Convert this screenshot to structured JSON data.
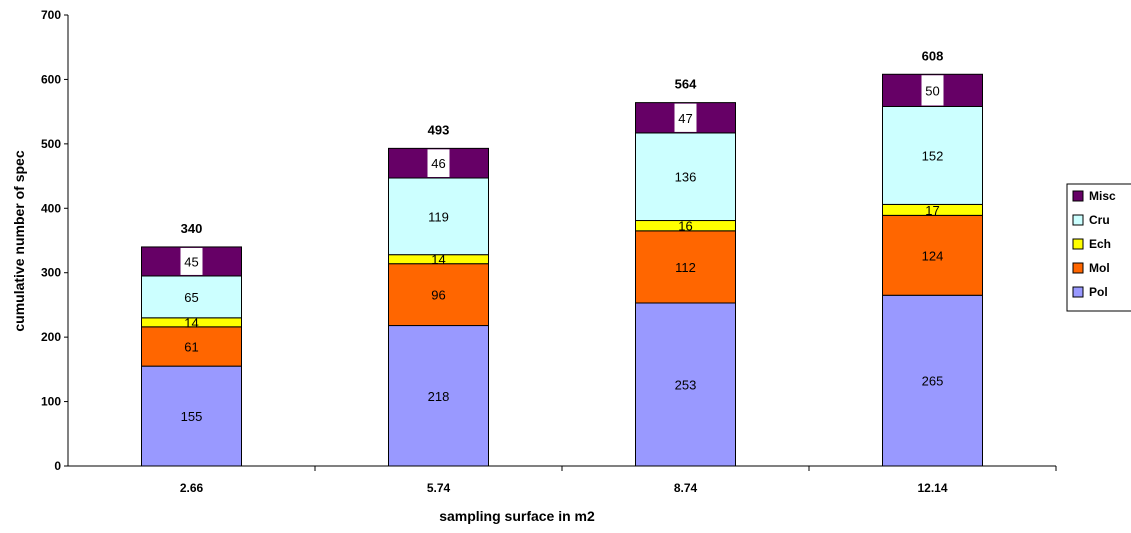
{
  "chart_data": {
    "type": "bar",
    "stacked": true,
    "categories": [
      "2.66",
      "5.74",
      "8.74",
      "12.14"
    ],
    "series": [
      {
        "name": "Pol",
        "color": "#9999ff",
        "values": [
          155,
          218,
          253,
          265
        ]
      },
      {
        "name": "Mol",
        "color": "#ff6600",
        "values": [
          61,
          96,
          112,
          124
        ]
      },
      {
        "name": "Ech",
        "color": "#ffff00",
        "values": [
          14,
          14,
          16,
          17
        ]
      },
      {
        "name": "Cru",
        "color": "#ccffff",
        "values": [
          65,
          119,
          136,
          152
        ]
      },
      {
        "name": "Misc",
        "color": "#660066",
        "values": [
          45,
          46,
          47,
          50
        ]
      }
    ],
    "totals": [
      340,
      493,
      564,
      608
    ],
    "xlabel": "sampling surface in m2",
    "ylabel": "cumulative number of spec",
    "ylim": [
      0,
      700
    ],
    "yticks": [
      0,
      100,
      200,
      300,
      400,
      500,
      600,
      700
    ],
    "grid": false,
    "legend": {
      "position": "right",
      "entries": [
        "Misc",
        "Cru",
        "Ech",
        "Mol",
        "Pol"
      ]
    }
  }
}
